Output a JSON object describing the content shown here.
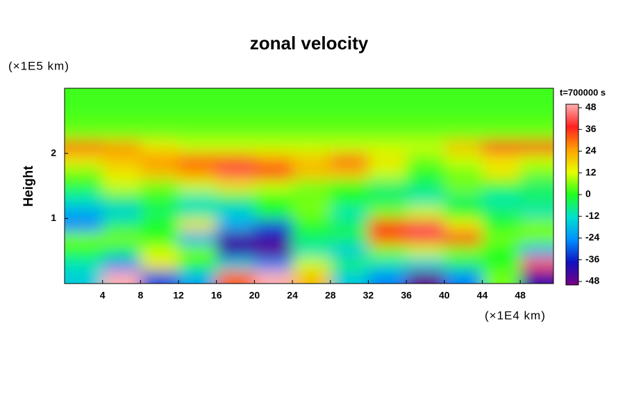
{
  "chart_data": {
    "type": "heatmap",
    "title": "zonal velocity",
    "ylabel": "Height",
    "x_unit": "(×1E4 km)",
    "y_unit": "(×1E5 km)",
    "colorbar_label": "t=700000 s",
    "xlim": [
      0,
      51.5
    ],
    "ylim": [
      0,
      3
    ],
    "xticks": [
      4,
      8,
      12,
      16,
      20,
      24,
      28,
      32,
      36,
      40,
      44,
      48
    ],
    "yticks": [
      1,
      2
    ],
    "clim": [
      -48,
      48
    ],
    "colorbar_ticks": [
      -48,
      -36,
      -24,
      -12,
      0,
      12,
      24,
      36,
      48
    ],
    "colormap": [
      "#7a0080",
      "#1010c0",
      "#0090ff",
      "#00e0d0",
      "#20ff20",
      "#e8ff00",
      "#ffa000",
      "#ff2020",
      "#ffb0b0"
    ],
    "x": [
      2,
      6,
      10,
      14,
      18,
      22,
      26,
      30,
      34,
      38,
      42,
      46,
      50
    ],
    "y": [
      0.1,
      0.3,
      0.5,
      0.7,
      0.9,
      1.1,
      1.3,
      1.5,
      1.7,
      1.9,
      2.1,
      2.3,
      2.5,
      2.7,
      2.9
    ],
    "z": [
      [
        -15,
        48,
        -30,
        -20,
        30,
        48,
        20,
        -15,
        -25,
        -45,
        -25,
        5,
        -40
      ],
      [
        -10,
        -25,
        15,
        0,
        -15,
        -25,
        10,
        -5,
        -10,
        -15,
        -5,
        0,
        40
      ],
      [
        0,
        -5,
        10,
        5,
        -40,
        -45,
        -10,
        -15,
        5,
        10,
        5,
        0,
        -20
      ],
      [
        5,
        5,
        0,
        -20,
        -42,
        -40,
        -5,
        -5,
        30,
        40,
        35,
        5,
        5
      ],
      [
        -25,
        -5,
        0,
        15,
        -20,
        -30,
        0,
        -5,
        35,
        40,
        15,
        0,
        5
      ],
      [
        -20,
        -15,
        -5,
        -10,
        -15,
        0,
        5,
        -10,
        5,
        10,
        0,
        -5,
        -10
      ],
      [
        -10,
        -5,
        0,
        -10,
        -5,
        0,
        5,
        0,
        -5,
        -10,
        -5,
        -10,
        -5
      ],
      [
        0,
        10,
        5,
        10,
        15,
        10,
        5,
        0,
        -5,
        -5,
        5,
        0,
        -5
      ],
      [
        5,
        15,
        20,
        25,
        40,
        35,
        20,
        20,
        10,
        0,
        5,
        15,
        5
      ],
      [
        15,
        20,
        25,
        30,
        30,
        25,
        20,
        30,
        15,
        5,
        10,
        15,
        10
      ],
      [
        30,
        25,
        15,
        10,
        10,
        10,
        10,
        10,
        10,
        10,
        20,
        35,
        35
      ],
      [
        5,
        5,
        5,
        5,
        5,
        5,
        5,
        5,
        5,
        5,
        5,
        5,
        5
      ],
      [
        3,
        3,
        3,
        3,
        3,
        3,
        3,
        3,
        3,
        3,
        3,
        3,
        3
      ],
      [
        2,
        2,
        2,
        2,
        2,
        2,
        2,
        2,
        2,
        2,
        2,
        2,
        2
      ],
      [
        2,
        2,
        2,
        2,
        2,
        2,
        2,
        2,
        2,
        2,
        2,
        2,
        2
      ]
    ]
  }
}
